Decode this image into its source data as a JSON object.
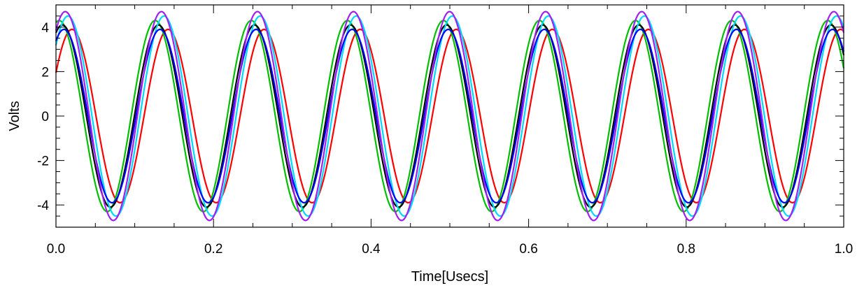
{
  "chart_data": {
    "type": "line",
    "title": "",
    "xlabel": "Time[Usecs]",
    "ylabel": "Volts",
    "xlim": [
      0.0,
      1.0
    ],
    "ylim": [
      -5.0,
      5.0
    ],
    "x_ticks": [
      0.0,
      0.2,
      0.4,
      0.6,
      0.8,
      1.0
    ],
    "x_tick_labels": [
      "0.0",
      "0.2",
      "0.4",
      "0.6",
      "0.8",
      "1.0"
    ],
    "y_ticks": [
      -4,
      -2,
      0,
      2,
      4
    ],
    "y_tick_labels": [
      "-4",
      "-2",
      "0",
      "2",
      "4"
    ],
    "grid": false,
    "legend": "none",
    "signal": {
      "frequency_mhz": 8.2,
      "samples": 601
    },
    "series": [
      {
        "color": "#ff0000",
        "amplitude": 3.9,
        "phase_deg": 30,
        "offset": 0.0
      },
      {
        "color": "#00c000",
        "amplitude": 4.3,
        "phase_deg": 78,
        "offset": 0.0
      },
      {
        "color": "#000000",
        "amplitude": 4.1,
        "phase_deg": 66,
        "offset": 0.0
      },
      {
        "color": "#00d8ff",
        "amplitude": 4.5,
        "phase_deg": 45,
        "offset": 0.0
      },
      {
        "color": "#0000ff",
        "amplitude": 3.9,
        "phase_deg": 60,
        "offset": 0.0
      },
      {
        "color": "#a020f0",
        "amplitude": 4.7,
        "phase_deg": 55,
        "offset": 0.0
      }
    ]
  }
}
